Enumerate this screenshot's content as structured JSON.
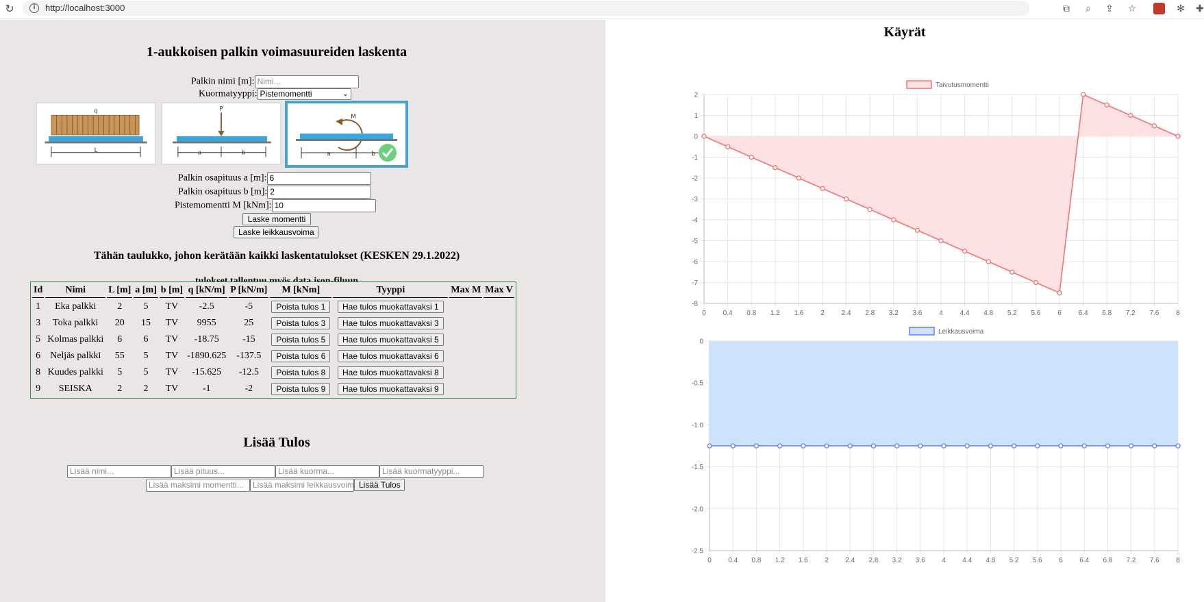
{
  "browser": {
    "url": "http://localhost:3000",
    "reload_icon": "reload-icon",
    "info_icon": "info-icon",
    "toolbar_icons": [
      "open-in-new-icon",
      "zoom-icon",
      "share-icon",
      "star-icon"
    ],
    "extension_icons": [
      "extension-red-icon",
      "extension-bug-icon",
      "extensions-puzzle-icon"
    ]
  },
  "calculator": {
    "title": "1-aukkoisen palkin voimasuureiden laskenta",
    "name_label": "Palkin nimi [m]:",
    "name_placeholder": "Nimi...",
    "load_type_label": "Kuormatyyppi:",
    "load_type_value": "Pistemomentti",
    "load_images": [
      {
        "name": "uniform-load",
        "labels": [
          "q",
          "L"
        ]
      },
      {
        "name": "point-load",
        "labels": [
          "P",
          "a",
          "b"
        ]
      },
      {
        "name": "point-moment",
        "labels": [
          "M",
          "a",
          "b"
        ],
        "selected": true
      }
    ],
    "a_label": "Palkin osapituus a [m]:",
    "a_value": "6",
    "b_label": "Palkin osapituus b [m]:",
    "b_value": "2",
    "m_label": "Pistemomentti M [kNm]:",
    "m_value": "10",
    "moment_button": "Laske momentti",
    "shear_button": "Laske leikkausvoima"
  },
  "results": {
    "heading": "Tähän taulukko, johon kerätään kaikki laskentatulokset (KESKEN 29.1.2022)",
    "subheading": "tulokset tallentuu myös data.json-filuun",
    "columns": [
      "Id",
      "Nimi",
      "L [m]",
      "a [m]",
      "b [m]",
      "q [kN/m]",
      "P [kN/m]",
      "M [kNm]",
      "Tyyppi",
      "Max M",
      "Max V"
    ],
    "rows": [
      {
        "id": "1",
        "name": "Eka palkki",
        "L": "2",
        "a": "5",
        "b": "TV",
        "q": "-2.5",
        "P": "-5",
        "delete": "Poista tulos 1",
        "edit": "Hae tulos muokattavaksi 1"
      },
      {
        "id": "3",
        "name": "Toka palkki",
        "L": "20",
        "a": "15",
        "b": "TV",
        "q": "9955",
        "P": "25",
        "delete": "Poista tulos 3",
        "edit": "Hae tulos muokattavaksi 3"
      },
      {
        "id": "5",
        "name": "Kolmas palkki",
        "L": "6",
        "a": "6",
        "b": "TV",
        "q": "-18.75",
        "P": "-15",
        "delete": "Poista tulos 5",
        "edit": "Hae tulos muokattavaksi 5"
      },
      {
        "id": "6",
        "name": "Neljäs palkki",
        "L": "55",
        "a": "5",
        "b": "TV",
        "q": "-1890.625",
        "P": "-137.5",
        "delete": "Poista tulos 6",
        "edit": "Hae tulos muokattavaksi 6"
      },
      {
        "id": "8",
        "name": "Kuudes palkki",
        "L": "5",
        "a": "5",
        "b": "TV",
        "q": "-15.625",
        "P": "-12.5",
        "delete": "Poista tulos 8",
        "edit": "Hae tulos muokattavaksi 8"
      },
      {
        "id": "9",
        "name": "SEISKA",
        "L": "2",
        "a": "2",
        "b": "TV",
        "q": "-1",
        "P": "-2",
        "delete": "Poista tulos 9",
        "edit": "Hae tulos muokattavaksi 9"
      }
    ]
  },
  "add_result": {
    "title": "Lisää Tulos",
    "name_placeholder": "Lisää nimi...",
    "length_placeholder": "Lisää pituus...",
    "load_placeholder": "Lisää kuorma...",
    "load_type_placeholder": "Lisää kuormatyyppi...",
    "max_moment_placeholder": "Lisää maksimi momentti...",
    "max_shear_placeholder": "Lisää maksimi leikkausvoima...",
    "submit_button": "Lisää Tulos"
  },
  "charts_title": "Käyrät",
  "colors": {
    "moment_line": "#f07575",
    "moment_fill": "#fde2e3",
    "shear_line": "#6b7bff",
    "shear_fill": "#cde3fb",
    "selected_border": "#4aa3c9",
    "table_border": "#2e8b57"
  },
  "chart_data": [
    {
      "type": "area",
      "legend": "Taivutusmomentti",
      "legend_position": "top",
      "grid": true,
      "xlim": [
        0,
        8
      ],
      "ylim": [
        -8,
        2
      ],
      "x_ticks": [
        "0",
        "0.4",
        "0.8",
        "1.2",
        "1.6",
        "2",
        "2.4",
        "2.8",
        "3.2",
        "3.6",
        "4",
        "4.4",
        "4.8",
        "5.2",
        "5.6",
        "6",
        "6.4",
        "6.8",
        "7.2",
        "7.6",
        "8"
      ],
      "y_ticks": [
        "2",
        "1",
        "0",
        "-1",
        "-2",
        "-3",
        "-4",
        "-5",
        "-6",
        "-7",
        "-8"
      ],
      "series": [
        {
          "name": "Taivutusmomentti",
          "x": [
            0,
            0.4,
            0.8,
            1.2,
            1.6,
            2,
            2.4,
            2.8,
            3.2,
            3.6,
            4,
            4.4,
            4.8,
            5.2,
            5.6,
            6,
            6.4,
            6.8,
            7.2,
            7.6,
            8
          ],
          "y": [
            0,
            -0.5,
            -1,
            -1.5,
            -2,
            -2.5,
            -3,
            -3.5,
            -4,
            -4.5,
            -5,
            -5.5,
            -6,
            -6.5,
            -7,
            -7.5,
            2,
            1.5,
            1,
            0.5,
            0
          ]
        }
      ]
    },
    {
      "type": "area",
      "legend": "Leikkausvoima",
      "legend_position": "top",
      "grid": true,
      "xlim": [
        0,
        8
      ],
      "ylim": [
        -2.5,
        0
      ],
      "x_ticks": [
        "0",
        "0.4",
        "0.8",
        "1.2",
        "1.6",
        "2",
        "2.4",
        "2.8",
        "3.2",
        "3.6",
        "4",
        "4.4",
        "4.8",
        "5.2",
        "5.6",
        "6",
        "6.4",
        "6.8",
        "7.2",
        "7.6",
        "8"
      ],
      "y_ticks": [
        "0",
        "-0.5",
        "-1.0",
        "-1.5",
        "-2.0",
        "-2.5"
      ],
      "series": [
        {
          "name": "Leikkausvoima",
          "x": [
            0,
            0.4,
            0.8,
            1.2,
            1.6,
            2,
            2.4,
            2.8,
            3.2,
            3.6,
            4,
            4.4,
            4.8,
            5.2,
            5.6,
            6,
            6.4,
            6.8,
            7.2,
            7.6,
            8
          ],
          "y": [
            -1.25,
            -1.25,
            -1.25,
            -1.25,
            -1.25,
            -1.25,
            -1.25,
            -1.25,
            -1.25,
            -1.25,
            -1.25,
            -1.25,
            -1.25,
            -1.25,
            -1.25,
            -1.25,
            -1.25,
            -1.25,
            -1.25,
            -1.25,
            -1.25
          ]
        }
      ]
    }
  ]
}
